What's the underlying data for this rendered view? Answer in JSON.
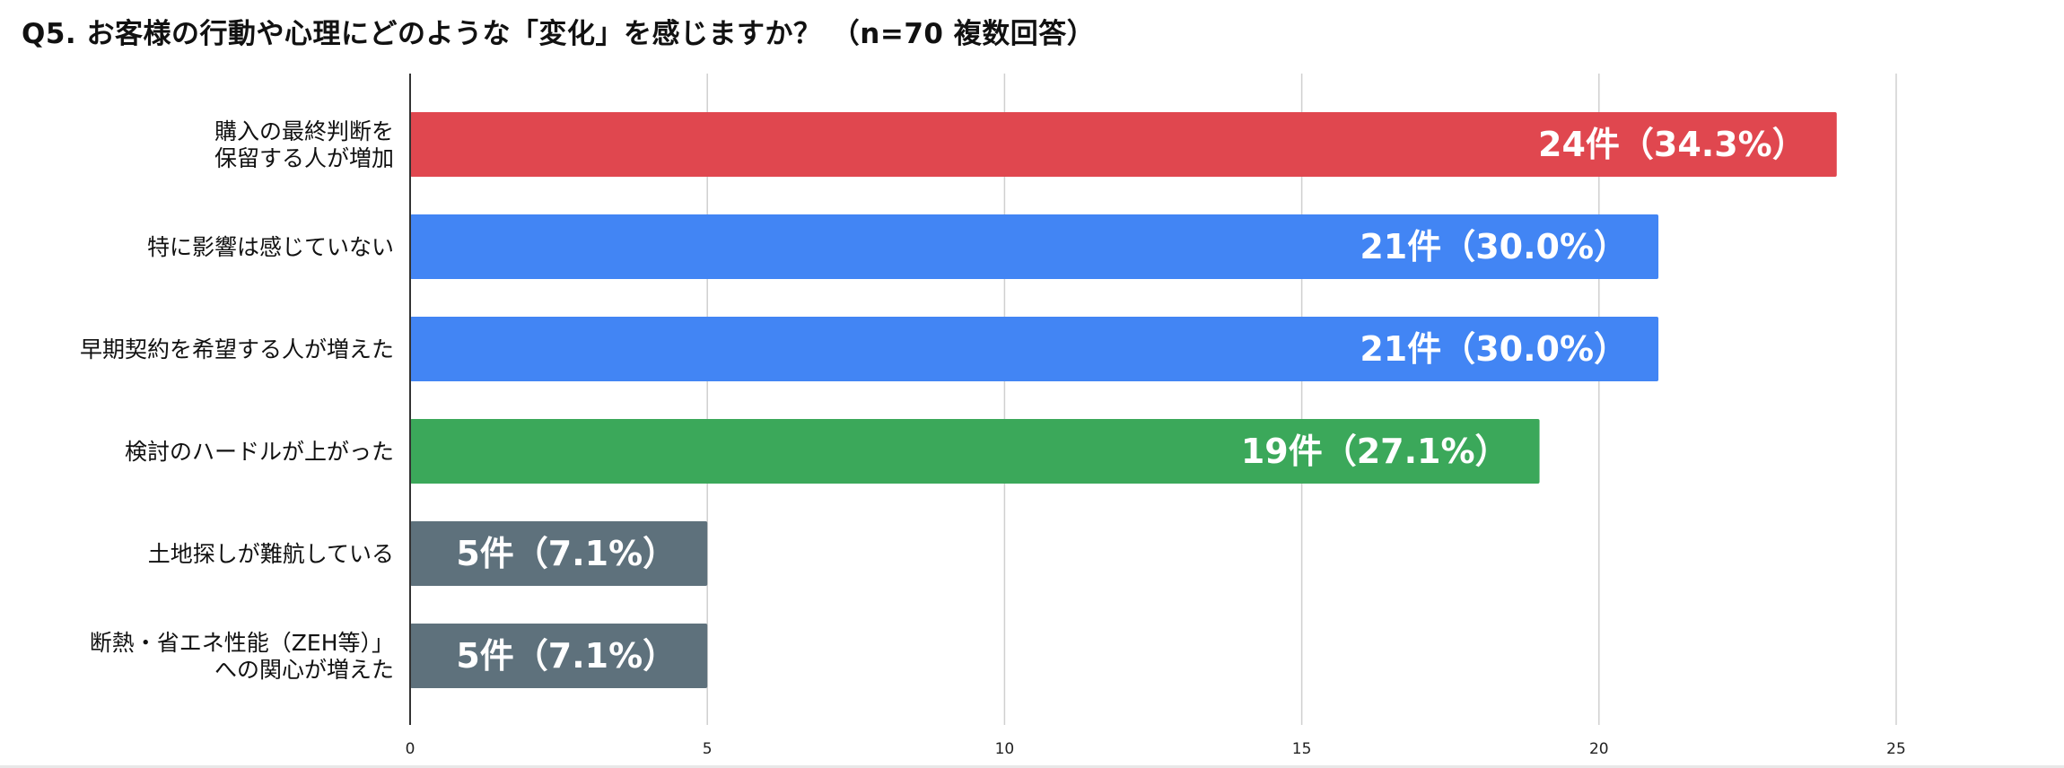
{
  "title": "Q5. お客様の行動や心理にどのような「変化」を感じますか？ （n=70 複数回答）",
  "chart_data": {
    "type": "bar",
    "orientation": "horizontal",
    "categories": [
      [
        "購入の最終判断を",
        "保留する人が増加"
      ],
      [
        "特に影響は感じていない"
      ],
      [
        "早期契約を希望する人が増えた"
      ],
      [
        "検討のハードルが上がった"
      ],
      [
        "土地探しが難航している"
      ],
      [
        "断熱・省エネ性能（ZEH等）」",
        "への関心が増えた"
      ]
    ],
    "values": [
      24,
      21,
      21,
      19,
      5,
      5
    ],
    "data_labels": [
      "24件（34.3%）",
      "21件（30.0%）",
      "21件（30.0%）",
      "19件（27.1%）",
      "5件（7.1%）",
      "5件（7.1%）"
    ],
    "bar_colors": [
      "#E0474F",
      "#4285F4",
      "#4285F4",
      "#3BA85A",
      "#5E717C",
      "#5E717C"
    ],
    "xlim": [
      0,
      25
    ],
    "xticks": [
      0,
      5,
      10,
      15,
      20,
      25
    ],
    "grid": true,
    "legend": "none",
    "xlabel": "",
    "ylabel": ""
  }
}
